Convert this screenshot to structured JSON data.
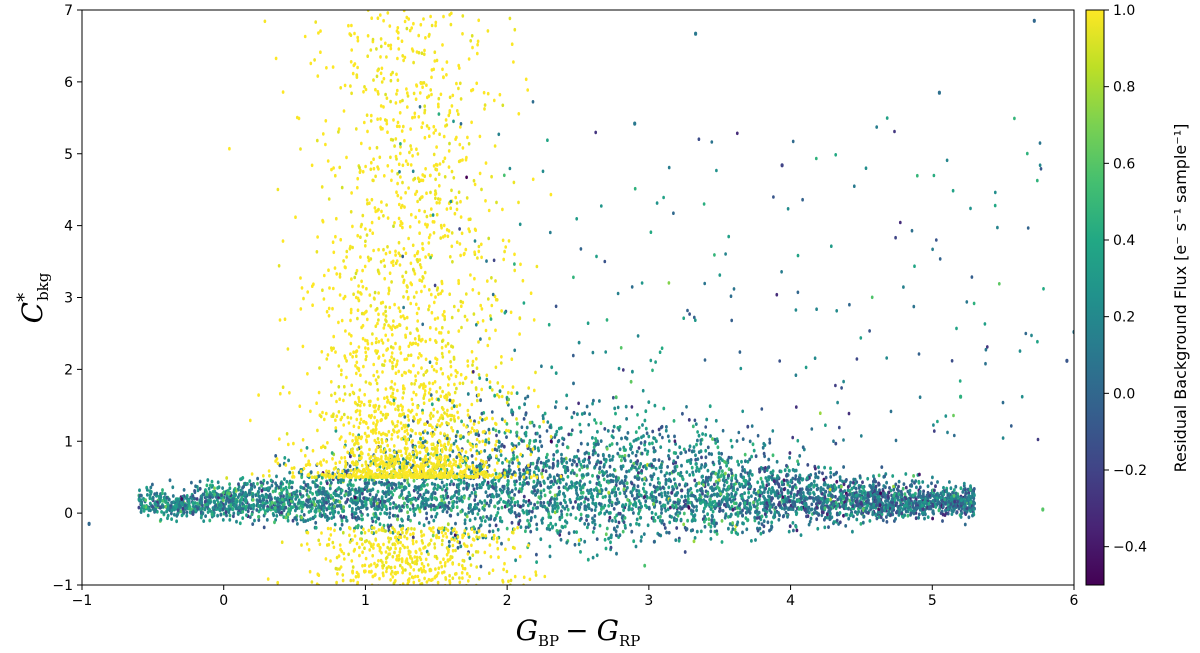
{
  "chart_data": {
    "type": "scatter",
    "xlabel": "G_BP − G_RP",
    "ylabel": "C*_bkg",
    "xlim": [
      -1,
      6
    ],
    "ylim": [
      -1,
      7
    ],
    "x_ticks": [
      -1,
      0,
      1,
      2,
      3,
      4,
      5,
      6
    ],
    "y_ticks": [
      -1,
      0,
      1,
      2,
      3,
      4,
      5,
      6,
      7
    ],
    "grid": false,
    "colorbar": {
      "label": "Residual Background Flux [e⁻ s⁻¹ sample⁻¹]",
      "colormap": "viridis",
      "range": [
        -0.5,
        1.0
      ],
      "ticks": [
        -0.4,
        -0.2,
        0.0,
        0.2,
        0.4,
        0.6,
        0.8,
        1.0
      ]
    },
    "distribution": {
      "main_locus": {
        "x_range": [
          -0.6,
          5.3
        ],
        "y_center": 0.05,
        "y_spread": 0.5,
        "color_value_mean": 0.2
      },
      "yellow_plume": {
        "x_center": 1.3,
        "x_spread": 0.35,
        "y_range": [
          0.5,
          7.0
        ],
        "color_value": 1.0
      },
      "scattered_points": [
        {
          "x": 5.72,
          "y": 6.85,
          "c": 0.0
        },
        {
          "x": 5.05,
          "y": 5.85,
          "c": 0.05
        },
        {
          "x": 3.33,
          "y": 6.67,
          "c": 0.1
        },
        {
          "x": 2.9,
          "y": 5.42,
          "c": 0.1
        },
        {
          "x": 3.94,
          "y": 4.84,
          "c": -0.2
        },
        {
          "x": 5.95,
          "y": 2.12,
          "c": -0.1
        },
        {
          "x": 6.0,
          "y": 2.52,
          "c": 0.1
        },
        {
          "x": 5.2,
          "y": 1.62,
          "c": 0.45
        },
        {
          "x": -0.95,
          "y": -0.15,
          "c": 0.0
        },
        {
          "x": 5.78,
          "y": 0.05,
          "c": 0.6
        }
      ]
    }
  },
  "axes": {
    "x_tick_labels": [
      "−1",
      "0",
      "1",
      "2",
      "3",
      "4",
      "5",
      "6"
    ],
    "y_tick_labels": [
      "−1",
      "0",
      "1",
      "2",
      "3",
      "4",
      "5",
      "6",
      "7"
    ],
    "x_label_main": "G",
    "x_label_sub1": "BP",
    "x_label_minus": "−",
    "x_label_sub2": "RP",
    "y_label_main": "C",
    "y_label_sup": "*",
    "y_label_sub": "bkg"
  },
  "colorbar": {
    "tick_labels": [
      "−0.4",
      "−0.2",
      "0.0",
      "0.2",
      "0.4",
      "0.6",
      "0.8",
      "1.0"
    ],
    "label": "Residual Background Flux [e⁻ s⁻¹ sample⁻¹]"
  },
  "colors": {
    "viridis": [
      "#440154",
      "#482475",
      "#414487",
      "#355f8d",
      "#2a788e",
      "#21918c",
      "#22a884",
      "#44bf70",
      "#7ad151",
      "#bddf26",
      "#fde725"
    ]
  }
}
